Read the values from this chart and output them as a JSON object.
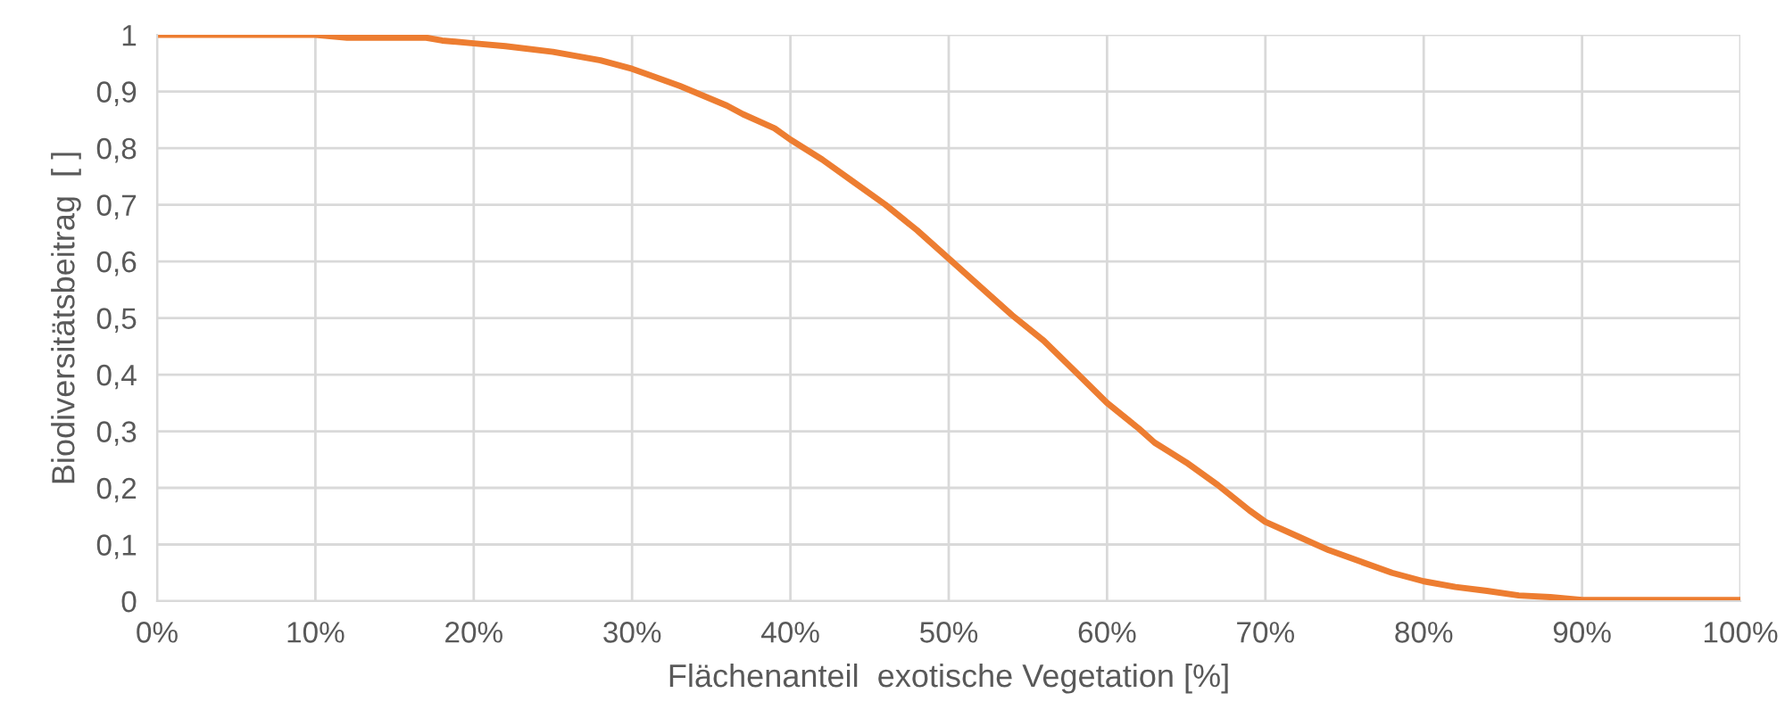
{
  "chart_data": {
    "type": "line",
    "xlabel": "Flächenanteil  exotische Vegetation [%]",
    "ylabel": "Biodiversitätsbeitrag  [ ]",
    "series": [
      {
        "color": "#ed7d31",
        "x": [
          0,
          10,
          12,
          17,
          18,
          20,
          22,
          25,
          28,
          30,
          31,
          33,
          36,
          37,
          39,
          40,
          42,
          44,
          46,
          48,
          50,
          52,
          54,
          56,
          58,
          60,
          62,
          63,
          65,
          67,
          69,
          70,
          72,
          74,
          76,
          78,
          80,
          82,
          84,
          86,
          88,
          90,
          92,
          100
        ],
        "values": [
          1,
          1,
          0.995,
          0.995,
          0.99,
          0.985,
          0.98,
          0.97,
          0.955,
          0.94,
          0.93,
          0.91,
          0.875,
          0.86,
          0.835,
          0.815,
          0.78,
          0.74,
          0.7,
          0.655,
          0.605,
          0.555,
          0.505,
          0.46,
          0.405,
          0.35,
          0.305,
          0.28,
          0.245,
          0.205,
          0.16,
          0.14,
          0.115,
          0.09,
          0.07,
          0.05,
          0.035,
          0.025,
          0.018,
          0.01,
          0.007,
          0.002,
          0.002,
          0.002
        ]
      }
    ],
    "xlim": [
      0,
      100
    ],
    "xticks": [
      {
        "value": 0,
        "label": "0%"
      },
      {
        "value": 10,
        "label": "10%"
      },
      {
        "value": 20,
        "label": "20%"
      },
      {
        "value": 30,
        "label": "30%"
      },
      {
        "value": 40,
        "label": "40%"
      },
      {
        "value": 50,
        "label": "50%"
      },
      {
        "value": 60,
        "label": "60%"
      },
      {
        "value": 70,
        "label": "70%"
      },
      {
        "value": 80,
        "label": "80%"
      },
      {
        "value": 90,
        "label": "90%"
      },
      {
        "value": 100,
        "label": "100%"
      }
    ],
    "ylim": [
      0,
      1
    ],
    "yticks": [
      0,
      {
        "value": 0.1,
        "label": "0,1"
      },
      {
        "value": 0.2,
        "label": "0,2"
      },
      {
        "value": 0.3,
        "label": "0,3"
      },
      {
        "value": 0.4,
        "label": "0,4"
      },
      {
        "value": 0.5,
        "label": "0,5"
      },
      {
        "value": 0.6,
        "label": "0,6"
      },
      {
        "value": 0.7,
        "label": "0,7"
      },
      {
        "value": 0.8,
        "label": "0,8"
      },
      {
        "value": 0.9,
        "label": "0,9"
      },
      1
    ],
    "grid": true,
    "line_style": "solid"
  }
}
